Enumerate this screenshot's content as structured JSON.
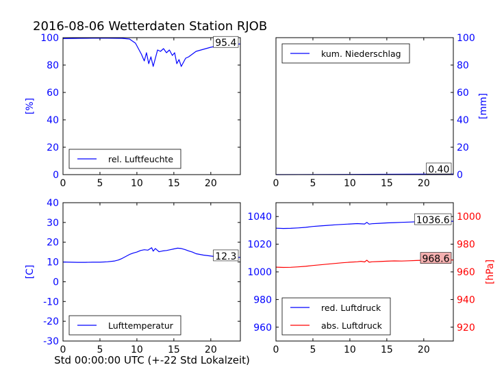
{
  "title": "2016-08-06 Wetterdaten Station RJOB",
  "xlabel": "Std 00:00:00 UTC (+-22 Std Lokalzeit)",
  "colors": {
    "blue": "#0000ff",
    "red": "#ff0000",
    "box_red_fill": "#f4b0b0"
  },
  "chart_data": [
    {
      "type": "line",
      "panel": "top-left",
      "ylabel": "[%]",
      "xlim": [
        0,
        24
      ],
      "ylim": [
        0,
        100
      ],
      "xticks": [
        0,
        5,
        10,
        15,
        20
      ],
      "yticks": [
        0,
        20,
        40,
        60,
        80,
        100
      ],
      "legend": "bottom-left",
      "series": [
        {
          "name": "rel. Luftfeuchte",
          "color": "#0000ff",
          "x": [
            0,
            2,
            4,
            6,
            8,
            9,
            9.8,
            10.2,
            10.6,
            11.0,
            11.3,
            11.6,
            11.9,
            12.2,
            12.5,
            12.8,
            13.2,
            13.6,
            14.0,
            14.4,
            14.8,
            15.1,
            15.4,
            15.7,
            16.0,
            16.3,
            16.6,
            17.0,
            17.5,
            18.0,
            19.0,
            20.0,
            21.0,
            22.0,
            23.0,
            24.0
          ],
          "values": [
            99.3,
            99.5,
            99.6,
            99.6,
            99.5,
            99.0,
            96.0,
            92.0,
            88.0,
            83.0,
            89.0,
            81.0,
            86.0,
            79.0,
            85.0,
            91.0,
            90.0,
            92.0,
            89.0,
            91.0,
            87.0,
            89.0,
            81.0,
            84.0,
            79.0,
            82.0,
            85.0,
            86.0,
            88.0,
            90.0,
            91.5,
            93.0,
            94.0,
            94.8,
            95.2,
            95.4
          ]
        }
      ],
      "last_value_label": "95.4"
    },
    {
      "type": "line",
      "panel": "top-right",
      "ylabel": "[mm]",
      "xlim": [
        0,
        24
      ],
      "ylim": [
        0,
        100
      ],
      "xticks": [
        0,
        5,
        10,
        15,
        20
      ],
      "yticks": [
        0,
        20,
        40,
        60,
        80,
        100
      ],
      "legend": "top-left",
      "series": [
        {
          "name": "kum. Niederschlag",
          "color": "#0000ff",
          "x": [
            0,
            12,
            24
          ],
          "values": [
            0.0,
            0.2,
            0.4
          ]
        }
      ],
      "last_value_label": "0.40"
    },
    {
      "type": "line",
      "panel": "bottom-left",
      "ylabel": "[C]",
      "xlim": [
        0,
        24
      ],
      "ylim": [
        -30,
        40
      ],
      "xticks": [
        0,
        5,
        10,
        15,
        20
      ],
      "yticks": [
        -30,
        -20,
        -10,
        0,
        10,
        20,
        30,
        40
      ],
      "legend": "bottom-left",
      "series": [
        {
          "name": "Lufttemperatur",
          "color": "#0000ff",
          "x": [
            0,
            1,
            2,
            3,
            4,
            5,
            6,
            7,
            7.5,
            8,
            8.5,
            9,
            9.5,
            10,
            10.5,
            11,
            11.5,
            12,
            12.2,
            12.5,
            12.8,
            13,
            13.5,
            14,
            14.5,
            15,
            15.5,
            16,
            16.5,
            17,
            17.5,
            18,
            19,
            20,
            21,
            22,
            23,
            24
          ],
          "values": [
            10.0,
            9.9,
            9.8,
            9.8,
            9.9,
            9.9,
            10.1,
            10.5,
            11.0,
            11.8,
            12.8,
            13.8,
            14.5,
            15.0,
            15.8,
            16.2,
            16.0,
            17.2,
            15.5,
            16.8,
            15.8,
            15.2,
            15.6,
            15.8,
            16.2,
            16.6,
            17.0,
            16.8,
            16.3,
            15.6,
            15.0,
            14.2,
            13.5,
            13.0,
            12.6,
            12.4,
            12.3,
            12.3
          ]
        }
      ],
      "last_value_label": "12.3"
    },
    {
      "type": "line",
      "panel": "bottom-right",
      "ylabel": "[hPa]",
      "xlim": [
        0,
        24
      ],
      "ylim_left": [
        950,
        1050
      ],
      "yticks_left": [
        960,
        980,
        1000,
        1020,
        1040
      ],
      "ylim_right": [
        910,
        1010
      ],
      "yticks_right": [
        920,
        940,
        960,
        980,
        1000
      ],
      "xticks": [
        0,
        5,
        10,
        15,
        20
      ],
      "legend": "bottom-left",
      "series": [
        {
          "name": "red. Luftdruck",
          "color": "#0000ff",
          "axis": "left",
          "x": [
            0,
            1,
            2,
            3,
            4,
            5,
            6,
            7,
            8,
            9,
            10,
            11,
            12,
            12.3,
            12.6,
            13,
            14,
            15,
            16,
            17,
            18,
            19,
            20,
            21,
            22,
            23,
            24
          ],
          "values": [
            1031.6,
            1031.4,
            1031.5,
            1031.8,
            1032.2,
            1032.8,
            1033.2,
            1033.6,
            1034.0,
            1034.3,
            1034.6,
            1034.9,
            1034.6,
            1035.8,
            1034.5,
            1034.8,
            1035.1,
            1035.4,
            1035.6,
            1035.8,
            1036.0,
            1036.2,
            1036.4,
            1036.5,
            1036.6,
            1036.6,
            1036.6
          ]
        },
        {
          "name": "abs. Luftdruck",
          "color": "#ff0000",
          "axis": "right",
          "x": [
            0,
            1,
            2,
            3,
            4,
            5,
            6,
            7,
            8,
            9,
            10,
            11,
            11.5,
            12,
            12.3,
            12.6,
            13,
            14,
            15,
            16,
            17,
            18,
            19,
            20,
            21,
            22,
            23,
            24
          ],
          "values": [
            963.4,
            963.2,
            963.3,
            963.6,
            964.0,
            964.6,
            965.1,
            965.6,
            966.1,
            966.6,
            967.0,
            967.3,
            967.6,
            967.2,
            968.4,
            967.0,
            967.3,
            967.5,
            967.7,
            967.9,
            967.8,
            968.0,
            968.2,
            968.4,
            968.5,
            968.6,
            968.6,
            968.6
          ]
        }
      ],
      "last_value_labels": [
        "1036.6",
        "968.6"
      ]
    }
  ]
}
